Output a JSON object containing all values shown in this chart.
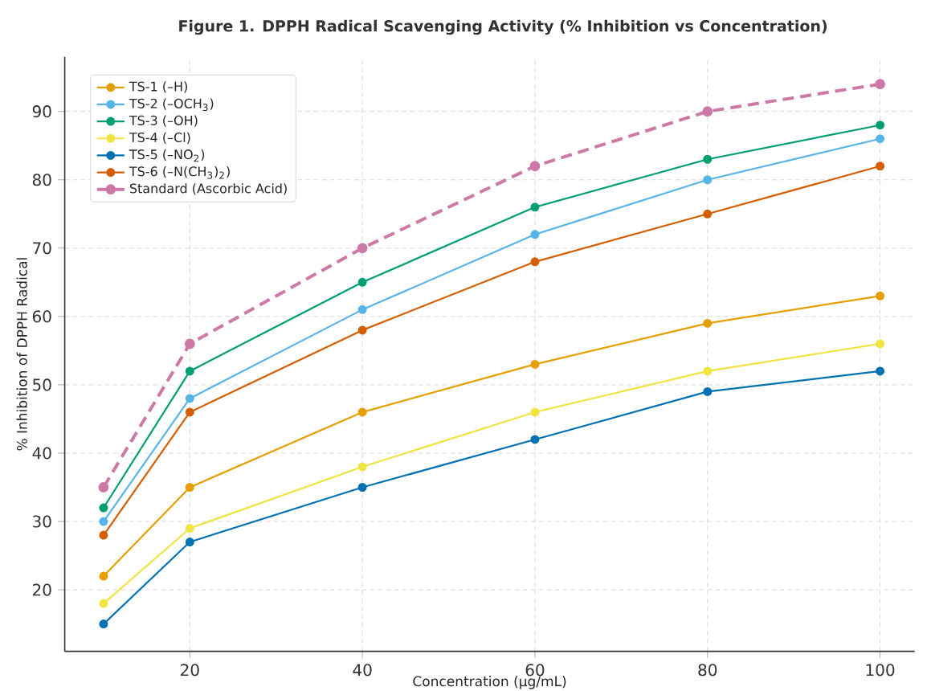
{
  "chart_data": {
    "type": "line",
    "title": "Figure 1. DPPH Radical Scavenging Activity (% Inhibition vs Concentration)",
    "xlabel": "Concentration (µg/mL)",
    "ylabel": "% Inhibition of DPPH Radical",
    "x": [
      10,
      20,
      40,
      60,
      80,
      100
    ],
    "series": [
      {
        "name": "TS-1 (–H)",
        "color": "#e69f00",
        "values": [
          22,
          35,
          46,
          53,
          59,
          63
        ]
      },
      {
        "name": "TS-2 (–OCH$_{3}$)",
        "color": "#56b4e9",
        "values": [
          30,
          48,
          61,
          72,
          80,
          86
        ]
      },
      {
        "name": "TS-3 (–OH)",
        "color": "#009e73",
        "values": [
          32,
          52,
          65,
          76,
          83,
          88
        ]
      },
      {
        "name": "TS-4 (–Cl)",
        "color": "#f0e442",
        "values": [
          18,
          29,
          38,
          46,
          52,
          56
        ]
      },
      {
        "name": "TS-5 (–NO$_{2}$)",
        "color": "#0072b2",
        "values": [
          15,
          27,
          35,
          42,
          49,
          52
        ]
      },
      {
        "name": "TS-6 (–N(CH$_{3}$)$_{2}$)",
        "color": "#d55e00",
        "values": [
          28,
          46,
          58,
          68,
          75,
          82
        ]
      },
      {
        "name": "Standard (Ascorbic Acid)",
        "color": "#cc79a7",
        "values": [
          35,
          56,
          70,
          82,
          90,
          94
        ],
        "line_style": "dashed"
      }
    ],
    "xlim": [
      5.5,
      104
    ],
    "ylim": [
      11,
      98
    ],
    "xticks": [
      20,
      40,
      60,
      80,
      100
    ],
    "yticks": [
      20,
      30,
      40,
      50,
      60,
      70,
      80,
      90
    ],
    "grid": true,
    "legend": "top left",
    "marker": "circle",
    "line_style": "solid"
  }
}
